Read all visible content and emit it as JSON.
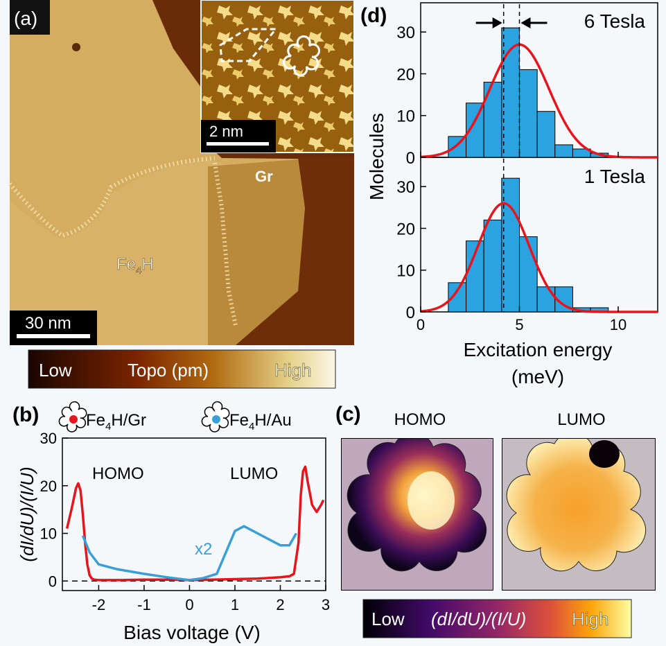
{
  "panel_a": {
    "label": "(a)",
    "inset_scale": "2 nm",
    "scale": "30 nm",
    "region_gr": "Gr",
    "region_fe4h_main": "Fe",
    "region_fe4h_sub": "4",
    "region_fe4h_tail": "H",
    "colorbar": {
      "low": "Low",
      "mid": "Topo (pm)",
      "high": "High"
    }
  },
  "panel_b": {
    "label": "(b)",
    "legend": [
      {
        "main": "Fe",
        "sub": "4",
        "tail": "H/Gr",
        "color": "#e8141c"
      },
      {
        "main": "Fe",
        "sub": "4",
        "tail": "H/Au",
        "color": "#3a9fd8"
      }
    ],
    "ylabel": "(dI/dU)/(I/U)",
    "xlabel": "Bias voltage (V)",
    "homo": "HOMO",
    "lumo": "LUMO",
    "x2": "x2"
  },
  "panel_c": {
    "label": "(c)",
    "homo": "HOMO",
    "lumo": "LUMO",
    "colorbar": {
      "low": "Low",
      "mid": "(dI/dU)/(I/U)",
      "high": "High"
    }
  },
  "panel_d": {
    "label": "(d)",
    "ylabel": "Molecules",
    "xlabel": "Excitation energy",
    "xunit": "(meV)",
    "top_title": "6 Tesla",
    "bottom_title": "1 Tesla"
  },
  "chart_data": [
    {
      "type": "line",
      "panel": "b",
      "xlabel": "Bias voltage (V)",
      "ylabel": "(dI/dU)/(I/U)",
      "xlim": [
        -2.8,
        3.0
      ],
      "ylim": [
        -2,
        30
      ],
      "xticks": [
        -2,
        -1,
        0,
        1,
        2,
        3
      ],
      "yticks": [
        0,
        10,
        20,
        30
      ],
      "series": [
        {
          "name": "Fe4H/Gr",
          "color": "#e8141c",
          "x": [
            -2.7,
            -2.6,
            -2.5,
            -2.45,
            -2.4,
            -2.35,
            -2.3,
            -2.25,
            -2.2,
            -2.15,
            -2.1,
            -2.0,
            -1.5,
            -1.0,
            -0.5,
            0.0,
            0.5,
            1.0,
            1.5,
            2.0,
            2.2,
            2.3,
            2.4,
            2.45,
            2.5,
            2.55,
            2.6,
            2.7,
            2.8,
            2.9,
            2.95
          ],
          "y": [
            11,
            15,
            19.5,
            20.5,
            19,
            14,
            8,
            3.5,
            1.2,
            0.5,
            0.3,
            0.2,
            0.2,
            0.3,
            0.3,
            0.2,
            0.3,
            0.4,
            0.5,
            0.8,
            1.0,
            1.5,
            8,
            18,
            23,
            24,
            21,
            16,
            14.5,
            16,
            17
          ]
        },
        {
          "name": "Fe4H/Au",
          "color": "#3a9fd8",
          "x": [
            -2.35,
            -2.2,
            -2.0,
            -1.6,
            -1.0,
            -0.5,
            0.0,
            0.3,
            0.6,
            0.8,
            1.0,
            1.2,
            1.4,
            1.7,
            2.0,
            2.2,
            2.35
          ],
          "y": [
            9.5,
            6,
            3.5,
            2.5,
            1.5,
            0.8,
            0.2,
            0.6,
            1.5,
            6,
            10.5,
            11.5,
            10.5,
            9,
            7.5,
            7.5,
            10
          ]
        }
      ]
    },
    {
      "type": "bar",
      "panel": "d",
      "title": "6 Tesla",
      "xlabel": "Excitation energy (meV)",
      "ylabel": "Molecules",
      "xlim": [
        0,
        12
      ],
      "ylim": [
        0,
        37
      ],
      "bin_edges": [
        1.4,
        2.3,
        3.2,
        4.1,
        5.0,
        5.9,
        6.8,
        7.7,
        8.6,
        9.5
      ],
      "values": [
        5,
        13,
        18,
        31,
        21,
        11,
        3,
        2,
        1
      ],
      "fit": {
        "type": "gaussian",
        "mean": 5.0,
        "sigma": 1.5,
        "amplitude": 27
      }
    },
    {
      "type": "bar",
      "panel": "d",
      "title": "1 Tesla",
      "xlabel": "Excitation energy (meV)",
      "ylabel": "Molecules",
      "xlim": [
        0,
        12
      ],
      "ylim": [
        0,
        37
      ],
      "xticks": [
        0,
        5,
        10
      ],
      "yticks": [
        0,
        10,
        20,
        30
      ],
      "bin_edges": [
        1.4,
        2.3,
        3.2,
        4.1,
        5.0,
        5.9,
        6.8,
        7.7,
        8.6,
        9.5
      ],
      "values": [
        7,
        17,
        22,
        32,
        18,
        6,
        6,
        1,
        1
      ],
      "fit": {
        "type": "gaussian",
        "mean": 4.2,
        "sigma": 1.3,
        "amplitude": 26
      }
    }
  ]
}
